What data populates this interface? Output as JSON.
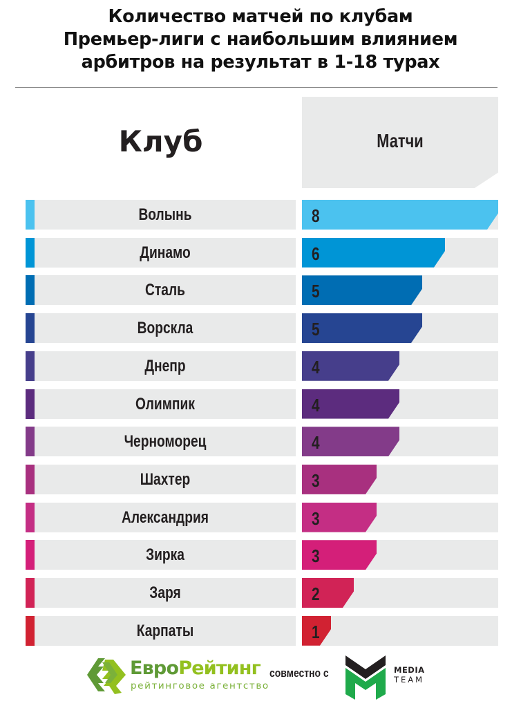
{
  "title": {
    "lines": [
      "Количество матчей по клубам",
      "Премьер-лиги с наибольшим влиянием",
      "арбитров на результат в 1-18 турах"
    ]
  },
  "headers": {
    "club": "Клуб",
    "matches": "Матчи"
  },
  "rows": [
    {
      "club": "Волынь",
      "value": "8",
      "color": "#4bc2ef"
    },
    {
      "club": "Динамо",
      "value": "6",
      "color": "#0095d6"
    },
    {
      "club": "Сталь",
      "value": "5",
      "color": "#006db3"
    },
    {
      "club": "Ворскла",
      "value": "5",
      "color": "#264592"
    },
    {
      "club": "Днепр",
      "value": "4",
      "color": "#463e8b"
    },
    {
      "club": "Олимпик",
      "value": "4",
      "color": "#5c2c7e"
    },
    {
      "club": "Черноморец",
      "value": "4",
      "color": "#833b89"
    },
    {
      "club": "Шахтер",
      "value": "3",
      "color": "#a8307f"
    },
    {
      "club": "Александрия",
      "value": "3",
      "color": "#c42e84"
    },
    {
      "club": "Зирка",
      "value": "3",
      "color": "#d41f79"
    },
    {
      "club": "Заря",
      "value": "2",
      "color": "#d12356"
    },
    {
      "club": "Карпаты",
      "value": "1",
      "color": "#d12232"
    }
  ],
  "footer": {
    "brand_part1": "Евро",
    "brand_part2": "Рейтинг",
    "brand_subtitle": "рейтинговое агентство",
    "partner_text": "совместно с",
    "partner_line1": "MEDIA",
    "partner_line2": "TEAM"
  },
  "chart_data": {
    "type": "bar",
    "orientation": "horizontal",
    "title": "Количество матчей по клубам Премьер-лиги с наибольшим влиянием арбитров на результат в 1-18 турах",
    "xlabel": "Матчи",
    "ylabel": "Клуб",
    "categories": [
      "Волынь",
      "Динамо",
      "Сталь",
      "Ворскла",
      "Днепр",
      "Олимпик",
      "Черноморец",
      "Шахтер",
      "Александрия",
      "Зирка",
      "Заря",
      "Карпаты"
    ],
    "values": [
      8,
      6,
      5,
      5,
      4,
      4,
      4,
      3,
      3,
      3,
      2,
      1
    ],
    "xlim": [
      0,
      8
    ],
    "grid": false,
    "legend": null,
    "data_labels": true
  }
}
